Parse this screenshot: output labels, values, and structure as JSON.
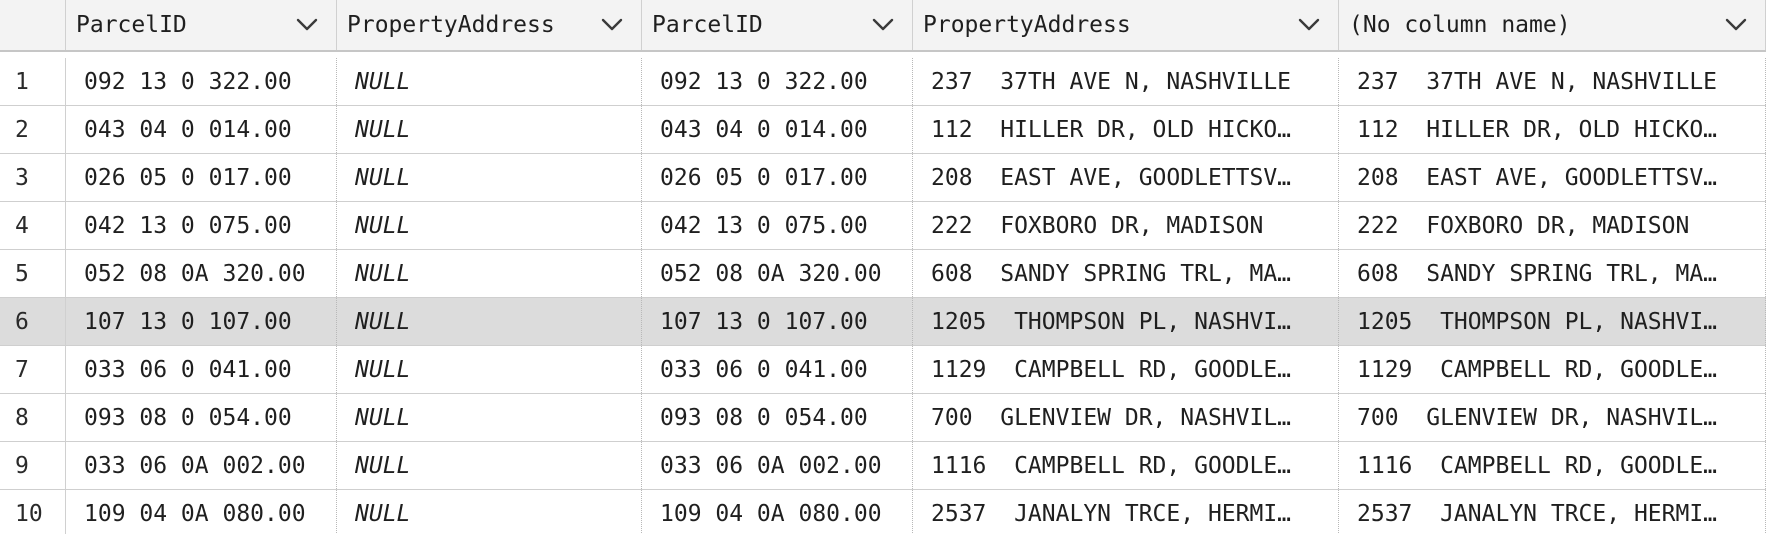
{
  "grid": {
    "columns": [
      {
        "label": ""
      },
      {
        "label": "ParcelID"
      },
      {
        "label": "PropertyAddress"
      },
      {
        "label": "ParcelID"
      },
      {
        "label": "PropertyAddress"
      },
      {
        "label": "(No column name)"
      }
    ],
    "selected_row": 6,
    "rows": [
      {
        "n": "1",
        "a_parcel": "092 13 0 322.00",
        "a_address": "NULL",
        "b_parcel": "092 13 0 322.00",
        "b_address": "237  37TH AVE N, NASHVILLE",
        "computed": "237  37TH AVE N, NASHVILLE"
      },
      {
        "n": "2",
        "a_parcel": "043 04 0 014.00",
        "a_address": "NULL",
        "b_parcel": "043 04 0 014.00",
        "b_address": "112  HILLER DR, OLD HICKO…",
        "computed": "112  HILLER DR, OLD HICKO…"
      },
      {
        "n": "3",
        "a_parcel": "026 05 0 017.00",
        "a_address": "NULL",
        "b_parcel": "026 05 0 017.00",
        "b_address": "208  EAST AVE, GOODLETTSV…",
        "computed": "208  EAST AVE, GOODLETTSV…"
      },
      {
        "n": "4",
        "a_parcel": "042 13 0 075.00",
        "a_address": "NULL",
        "b_parcel": "042 13 0 075.00",
        "b_address": "222  FOXBORO DR, MADISON",
        "computed": "222  FOXBORO DR, MADISON"
      },
      {
        "n": "5",
        "a_parcel": "052 08 0A 320.00",
        "a_address": "NULL",
        "b_parcel": "052 08 0A 320.00",
        "b_address": "608  SANDY SPRING TRL, MA…",
        "computed": "608  SANDY SPRING TRL, MA…"
      },
      {
        "n": "6",
        "a_parcel": "107 13 0 107.00",
        "a_address": "NULL",
        "b_parcel": "107 13 0 107.00",
        "b_address": "1205  THOMPSON PL, NASHVI…",
        "computed": "1205  THOMPSON PL, NASHVI…"
      },
      {
        "n": "7",
        "a_parcel": "033 06 0 041.00",
        "a_address": "NULL",
        "b_parcel": "033 06 0 041.00",
        "b_address": "1129  CAMPBELL RD, GOODLE…",
        "computed": "1129  CAMPBELL RD, GOODLE…"
      },
      {
        "n": "8",
        "a_parcel": "093 08 0 054.00",
        "a_address": "NULL",
        "b_parcel": "093 08 0 054.00",
        "b_address": "700  GLENVIEW DR, NASHVIL…",
        "computed": "700  GLENVIEW DR, NASHVIL…"
      },
      {
        "n": "9",
        "a_parcel": "033 06 0A 002.00",
        "a_address": "NULL",
        "b_parcel": "033 06 0A 002.00",
        "b_address": "1116  CAMPBELL RD, GOODLE…",
        "computed": "1116  CAMPBELL RD, GOODLE…"
      },
      {
        "n": "10",
        "a_parcel": "109 04 0A 080.00",
        "a_address": "NULL",
        "b_parcel": "109 04 0A 080.00",
        "b_address": "2537  JANALYN TRCE, HERMI…",
        "computed": "2537  JANALYN TRCE, HERMI…"
      }
    ]
  },
  "icons": {
    "sort": "chevron-down-icon"
  },
  "colors": {
    "header_bg": "#f3f3f3",
    "selected_row_bg": "#dcdcdc",
    "grid_line": "#cfcfcf"
  }
}
